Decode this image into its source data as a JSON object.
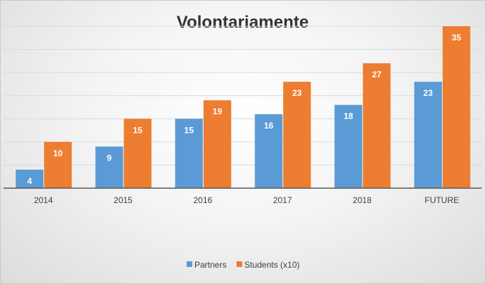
{
  "chart_data": {
    "type": "bar",
    "title": "Volontariamente",
    "xlabel": "",
    "ylabel": "",
    "categories": [
      "2014",
      "2015",
      "2016",
      "2017",
      "2018",
      "FUTURE"
    ],
    "series": [
      {
        "name": "Partners",
        "values": [
          4,
          9,
          15,
          16,
          18,
          23
        ],
        "color": "#5B9BD5"
      },
      {
        "name": "Students (x10)",
        "values": [
          10,
          15,
          19,
          23,
          27,
          35
        ],
        "color": "#ED7D31"
      }
    ],
    "ylim": [
      0,
      35
    ],
    "grid": true,
    "legend": "bottom",
    "data_labels": true
  }
}
